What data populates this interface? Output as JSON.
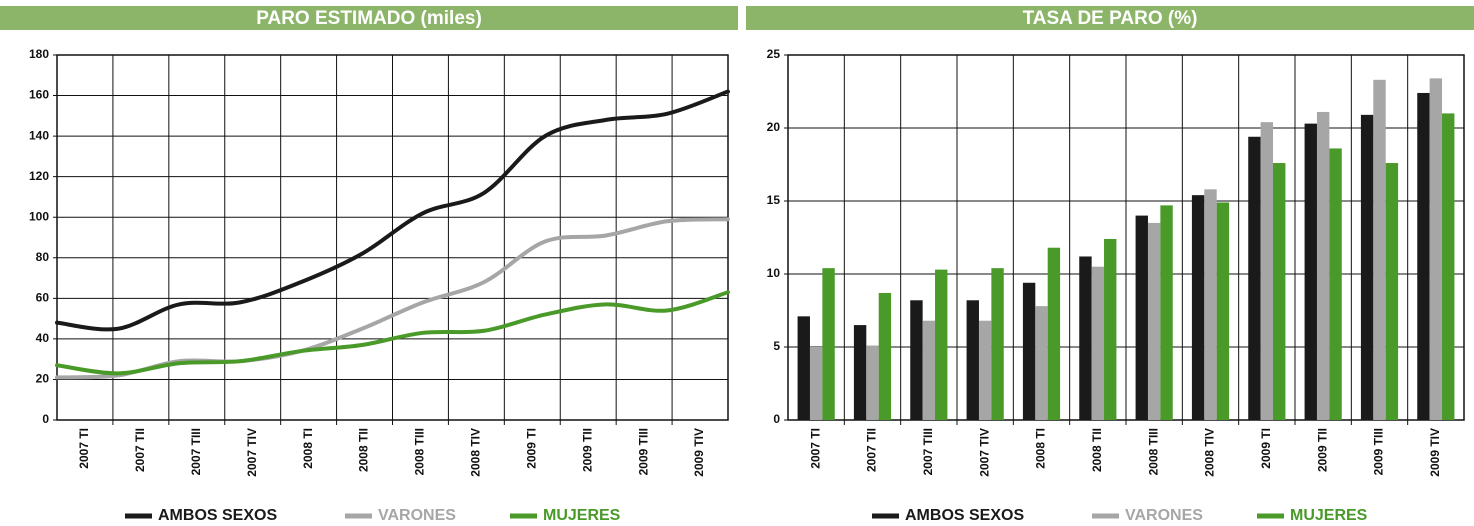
{
  "chart_data": [
    {
      "type": "line",
      "title": "PARO ESTIMADO (miles)",
      "categories": [
        "2007 TI",
        "2007 TII",
        "2007 TIII",
        "2007 TIV",
        "2008 TI",
        "2008 TII",
        "2008 TIII",
        "2008 TIV",
        "2009 TI",
        "2009 TII",
        "2009 TIII",
        "2009 TIV"
      ],
      "series": [
        {
          "name": "AMBOS SEXOS",
          "color": "#1a1a1a",
          "values": [
            48,
            45,
            57,
            58,
            68,
            82,
            102,
            112,
            140,
            148,
            151,
            162
          ]
        },
        {
          "name": "VARONES",
          "color": "#a6a6a6",
          "values": [
            21,
            22,
            29,
            29,
            34,
            45,
            58,
            68,
            88,
            91,
            98,
            99
          ]
        },
        {
          "name": "MUJERES",
          "color": "#4a9a2a",
          "values": [
            27,
            23,
            28,
            29,
            34,
            37,
            43,
            44,
            52,
            57,
            54,
            63
          ]
        }
      ],
      "ylim": [
        0,
        180
      ],
      "yticks": [
        0,
        20,
        40,
        60,
        80,
        100,
        120,
        140,
        160,
        180
      ],
      "grid": true
    },
    {
      "type": "bar",
      "title": "TASA DE PARO (%)",
      "categories": [
        "2007 TI",
        "2007 TII",
        "2007 TIII",
        "2007 TIV",
        "2008 TI",
        "2008 TII",
        "2008 TIII",
        "2008 TIV",
        "2009 TI",
        "2009 TII",
        "2009 TIII",
        "2009 TIV"
      ],
      "series": [
        {
          "name": "AMBOS SEXOS",
          "color": "#1a1a1a",
          "values": [
            7.1,
            6.5,
            8.2,
            8.2,
            9.4,
            11.2,
            14.0,
            15.4,
            19.4,
            20.3,
            20.9,
            22.4
          ]
        },
        {
          "name": "VARONES",
          "color": "#a6a6a6",
          "values": [
            5.0,
            5.1,
            6.8,
            6.8,
            7.8,
            10.5,
            13.5,
            15.8,
            20.4,
            21.1,
            23.3,
            23.4
          ]
        },
        {
          "name": "MUJERES",
          "color": "#4a9a2a",
          "values": [
            10.4,
            8.7,
            10.3,
            10.4,
            11.8,
            12.4,
            14.7,
            14.9,
            17.6,
            18.6,
            17.6,
            21.0
          ]
        }
      ],
      "ylim": [
        0,
        25
      ],
      "yticks": [
        0,
        5,
        10,
        15,
        20,
        25
      ],
      "grid": true
    }
  ]
}
